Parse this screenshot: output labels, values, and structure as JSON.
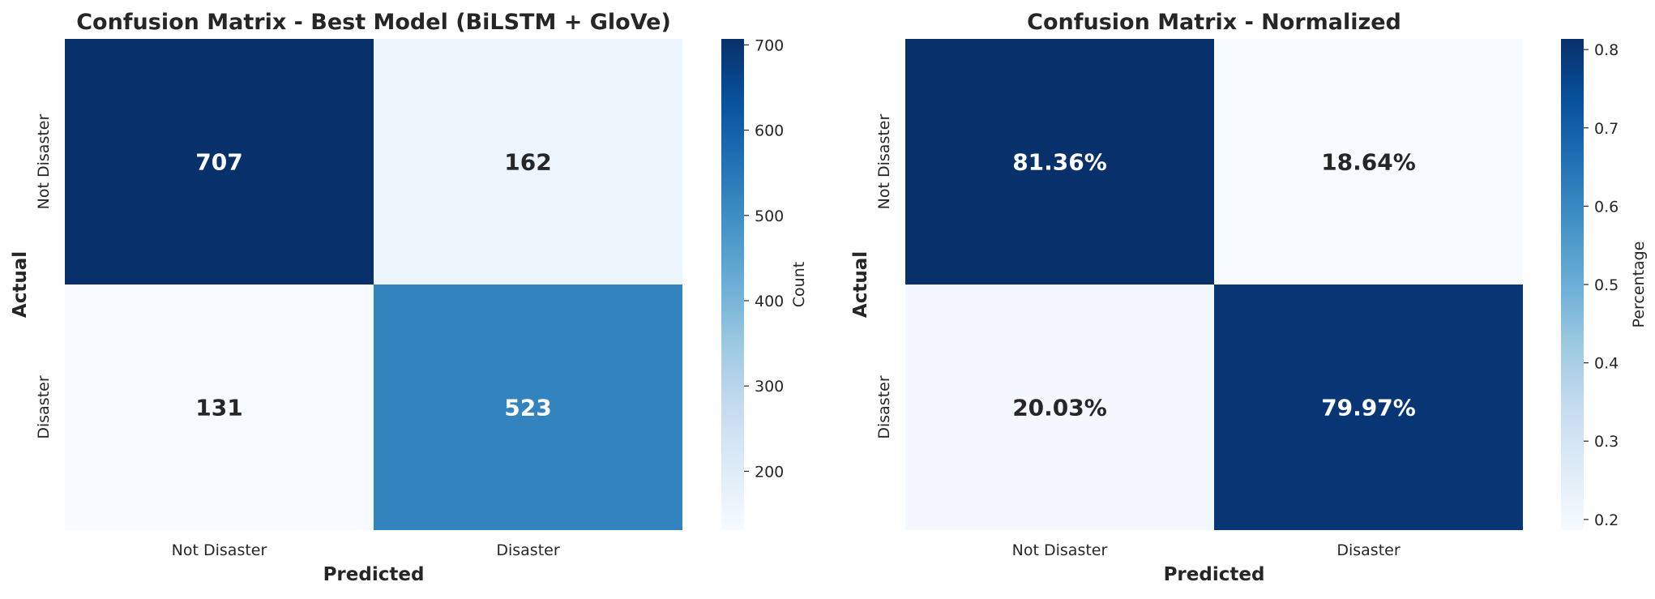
{
  "chart_data": [
    {
      "type": "heatmap",
      "title": "Confusion Matrix - Best Model (BiLSTM + GloVe)",
      "xlabel": "Predicted",
      "ylabel": "Actual",
      "x_categories": [
        "Not Disaster",
        "Disaster"
      ],
      "y_categories": [
        "Not Disaster",
        "Disaster"
      ],
      "values": [
        [
          707,
          162
        ],
        [
          131,
          523
        ]
      ],
      "annotations": [
        [
          "707",
          "162"
        ],
        [
          "131",
          "523"
        ]
      ],
      "colormap": "Blues",
      "colorbar": {
        "label": "Count",
        "range": [
          131,
          707
        ],
        "ticks": [
          200,
          300,
          400,
          500,
          600,
          700
        ],
        "tick_labels": [
          "200",
          "300",
          "400",
          "500",
          "600",
          "700"
        ]
      }
    },
    {
      "type": "heatmap",
      "title": "Confusion Matrix - Normalized",
      "xlabel": "Predicted",
      "ylabel": "Actual",
      "x_categories": [
        "Not Disaster",
        "Disaster"
      ],
      "y_categories": [
        "Not Disaster",
        "Disaster"
      ],
      "values": [
        [
          0.8136,
          0.1864
        ],
        [
          0.2003,
          0.7997
        ]
      ],
      "annotations": [
        [
          "81.36%",
          "18.64%"
        ],
        [
          "20.03%",
          "79.97%"
        ]
      ],
      "colormap": "Blues",
      "colorbar": {
        "label": "Percentage",
        "range": [
          0.1864,
          0.8136
        ],
        "ticks": [
          0.2,
          0.3,
          0.4,
          0.5,
          0.6,
          0.7,
          0.8
        ],
        "tick_labels": [
          "0.2",
          "0.3",
          "0.4",
          "0.5",
          "0.6",
          "0.7",
          "0.8"
        ]
      }
    }
  ]
}
